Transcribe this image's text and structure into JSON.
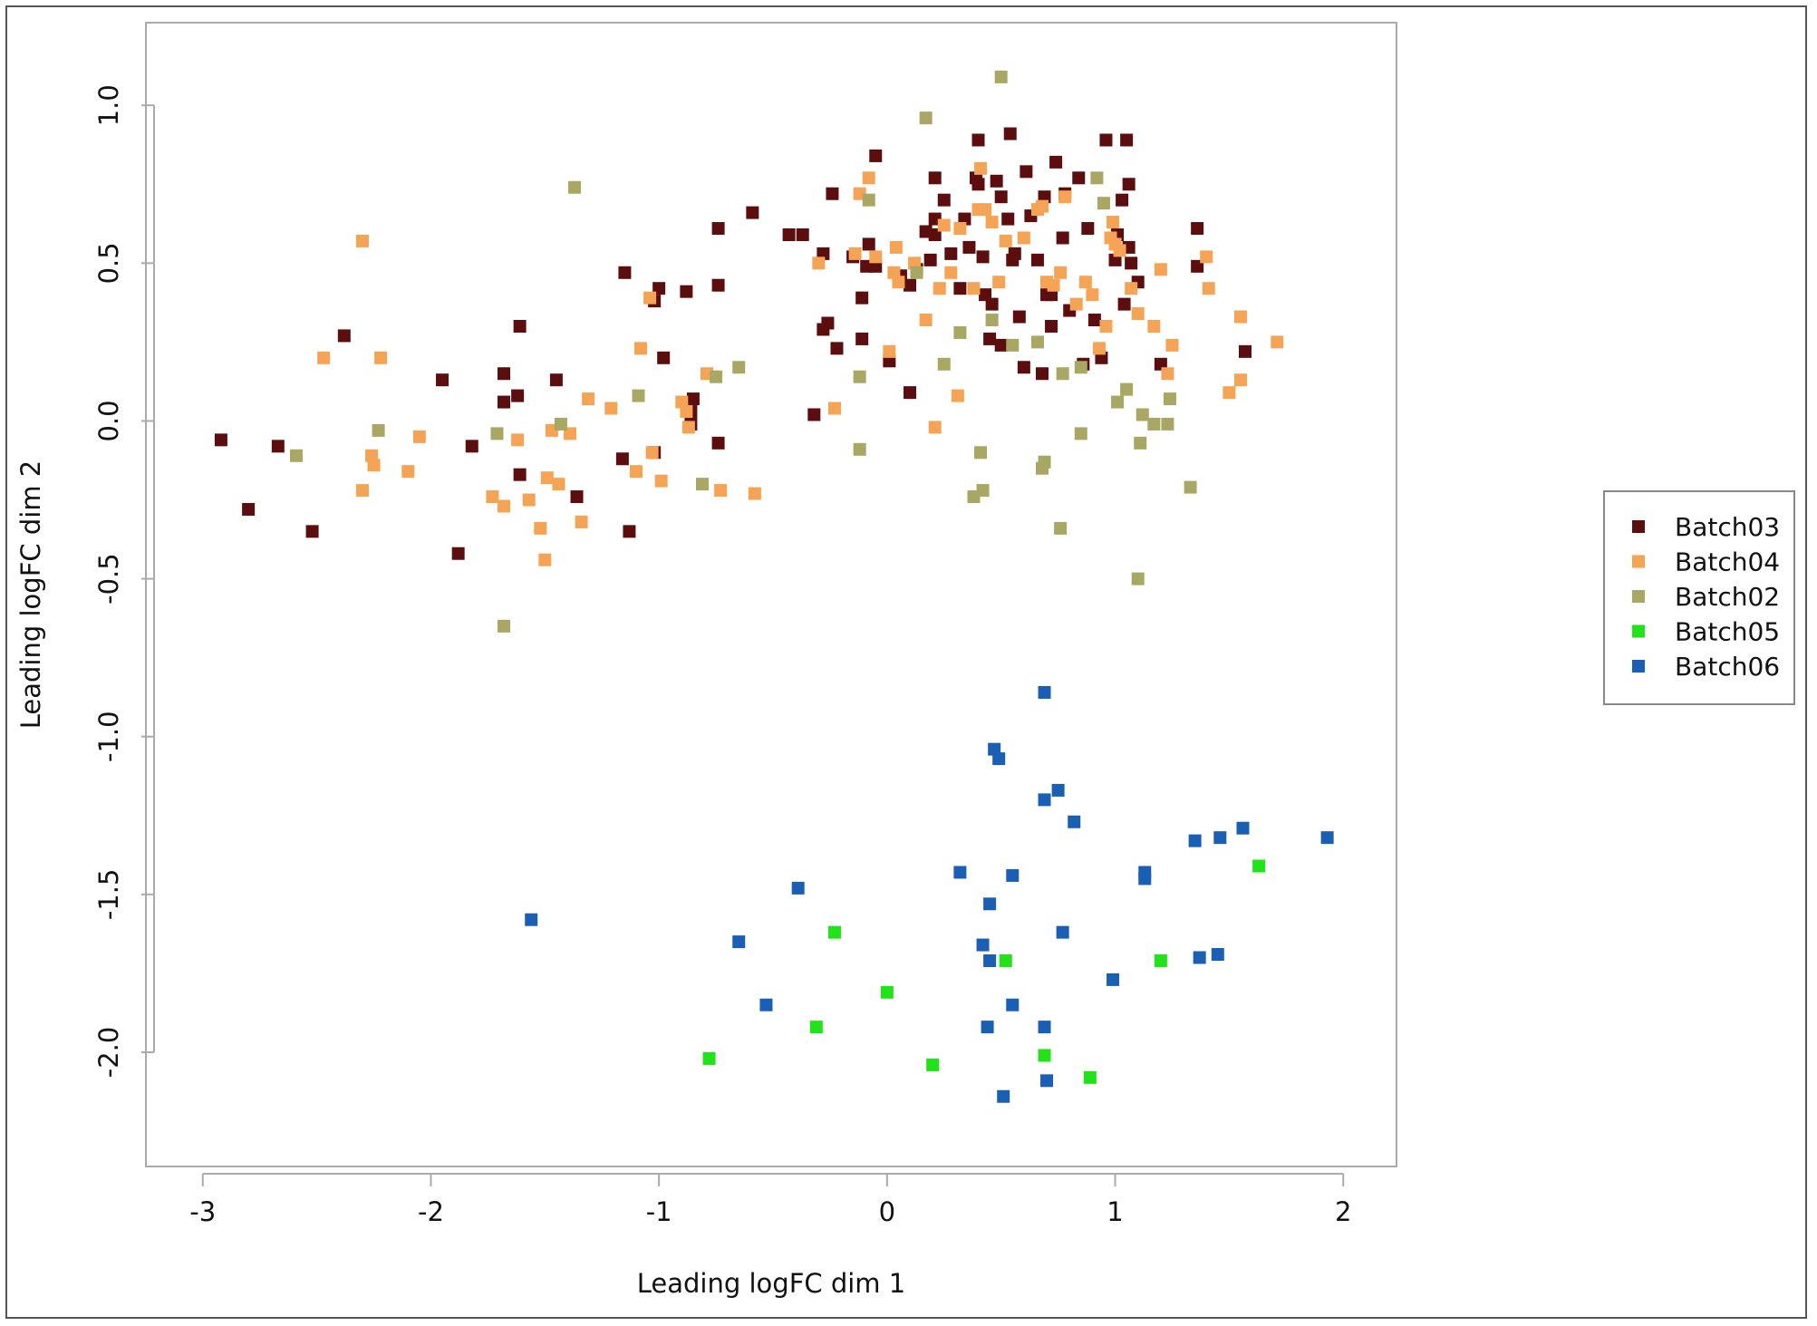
{
  "chart_data": {
    "type": "scatter",
    "xlabel": "Leading logFC dim 1",
    "ylabel": "Leading logFC dim 2",
    "xlim": [
      -3.1,
      2.1
    ],
    "ylim": [
      -2.27,
      1.17
    ],
    "x_ticks": [
      -3,
      -2,
      -1,
      0,
      1,
      2
    ],
    "x_tick_labels": [
      "-3",
      "-2",
      "-1",
      "0",
      "1",
      "2"
    ],
    "y_ticks": [
      1.0,
      0.5,
      0.0,
      -0.5,
      -1.0,
      -1.5,
      -2.0
    ],
    "y_tick_labels": [
      "1.0",
      "0.5",
      "0.0",
      "-0.5",
      "-1.0",
      "-1.5",
      "-2.0"
    ],
    "grid": false,
    "legend_position": "right",
    "series": [
      {
        "name": "Batch03",
        "color": "#5c0e0e",
        "points": [
          [
            -2.92,
            -0.06
          ],
          [
            -2.8,
            -0.28
          ],
          [
            -2.67,
            -0.08
          ],
          [
            -2.52,
            -0.35
          ],
          [
            -2.38,
            0.27
          ],
          [
            -1.95,
            0.13
          ],
          [
            -1.88,
            -0.42
          ],
          [
            -1.82,
            -0.08
          ],
          [
            -1.68,
            0.06
          ],
          [
            -1.68,
            0.15
          ],
          [
            -1.62,
            0.08
          ],
          [
            -1.61,
            -0.17
          ],
          [
            -1.61,
            0.3
          ],
          [
            -1.45,
            0.13
          ],
          [
            -1.36,
            -0.24
          ],
          [
            -1.15,
            0.47
          ],
          [
            -1.13,
            -0.35
          ],
          [
            -1.16,
            -0.12
          ],
          [
            -1.0,
            0.42
          ],
          [
            -1.02,
            0.38
          ],
          [
            -1.02,
            -0.1
          ],
          [
            -0.98,
            0.2
          ],
          [
            -0.88,
            0.41
          ],
          [
            -0.85,
            0.07
          ],
          [
            -0.86,
            0.03
          ],
          [
            -0.86,
            -0.01
          ],
          [
            -0.74,
            0.43
          ],
          [
            -0.74,
            0.61
          ],
          [
            -0.74,
            -0.07
          ],
          [
            -0.59,
            0.66
          ],
          [
            -0.43,
            0.59
          ],
          [
            -0.37,
            0.59
          ],
          [
            -0.32,
            0.02
          ],
          [
            -0.28,
            0.29
          ],
          [
            -0.28,
            0.53
          ],
          [
            -0.26,
            0.31
          ],
          [
            -0.24,
            0.72
          ],
          [
            -0.22,
            0.23
          ],
          [
            -0.15,
            0.52
          ],
          [
            -0.11,
            0.26
          ],
          [
            -0.11,
            0.39
          ],
          [
            -0.09,
            0.49
          ],
          [
            -0.08,
            0.56
          ],
          [
            -0.05,
            0.84
          ],
          [
            -0.05,
            0.49
          ],
          [
            0.01,
            0.19
          ],
          [
            0.06,
            0.46
          ],
          [
            0.1,
            0.43
          ],
          [
            0.1,
            0.09
          ],
          [
            0.13,
            0.48
          ],
          [
            0.17,
            0.6
          ],
          [
            0.19,
            0.51
          ],
          [
            0.21,
            0.77
          ],
          [
            0.21,
            0.59
          ],
          [
            0.21,
            0.64
          ],
          [
            0.25,
            0.7
          ],
          [
            0.28,
            0.53
          ],
          [
            0.32,
            0.42
          ],
          [
            0.34,
            0.64
          ],
          [
            0.36,
            0.55
          ],
          [
            0.39,
            0.77
          ],
          [
            0.4,
            0.89
          ],
          [
            0.4,
            0.75
          ],
          [
            0.42,
            0.52
          ],
          [
            0.43,
            0.4
          ],
          [
            0.45,
            0.26
          ],
          [
            0.46,
            0.37
          ],
          [
            0.48,
            0.76
          ],
          [
            0.5,
            0.24
          ],
          [
            0.5,
            0.71
          ],
          [
            0.53,
            0.64
          ],
          [
            0.54,
            0.91
          ],
          [
            0.55,
            0.51
          ],
          [
            0.56,
            0.53
          ],
          [
            0.58,
            0.33
          ],
          [
            0.6,
            0.17
          ],
          [
            0.61,
            0.79
          ],
          [
            0.63,
            0.65
          ],
          [
            0.66,
            0.51
          ],
          [
            0.68,
            0.15
          ],
          [
            0.69,
            0.71
          ],
          [
            0.7,
            0.4
          ],
          [
            0.72,
            0.3
          ],
          [
            0.72,
            0.4
          ],
          [
            0.74,
            0.82
          ],
          [
            0.77,
            0.58
          ],
          [
            0.78,
            0.72
          ],
          [
            0.8,
            0.35
          ],
          [
            0.84,
            0.77
          ],
          [
            0.86,
            0.18
          ],
          [
            0.88,
            0.61
          ],
          [
            0.91,
            0.32
          ],
          [
            0.94,
            0.2
          ],
          [
            0.96,
            0.89
          ],
          [
            1.0,
            0.51
          ],
          [
            1.01,
            0.59
          ],
          [
            1.03,
            0.7
          ],
          [
            1.04,
            0.37
          ],
          [
            1.05,
            0.89
          ],
          [
            1.06,
            0.75
          ],
          [
            1.06,
            0.55
          ],
          [
            1.07,
            0.5
          ],
          [
            1.1,
            0.44
          ],
          [
            1.2,
            0.18
          ],
          [
            1.36,
            0.61
          ],
          [
            1.36,
            0.49
          ],
          [
            1.57,
            0.22
          ]
        ]
      },
      {
        "name": "Batch04",
        "color": "#f5a455",
        "points": [
          [
            -2.47,
            0.2
          ],
          [
            -2.3,
            0.57
          ],
          [
            -2.3,
            -0.22
          ],
          [
            -2.26,
            -0.11
          ],
          [
            -2.25,
            -0.14
          ],
          [
            -2.22,
            0.2
          ],
          [
            -2.1,
            -0.16
          ],
          [
            -2.05,
            -0.05
          ],
          [
            -1.73,
            -0.24
          ],
          [
            -1.68,
            -0.27
          ],
          [
            -1.62,
            -0.06
          ],
          [
            -1.57,
            -0.25
          ],
          [
            -1.52,
            -0.34
          ],
          [
            -1.5,
            -0.44
          ],
          [
            -1.49,
            -0.18
          ],
          [
            -1.47,
            -0.03
          ],
          [
            -1.44,
            -0.2
          ],
          [
            -1.39,
            -0.04
          ],
          [
            -1.34,
            -0.32
          ],
          [
            -1.31,
            0.07
          ],
          [
            -1.21,
            0.04
          ],
          [
            -1.08,
            0.23
          ],
          [
            -1.04,
            0.39
          ],
          [
            -1.03,
            -0.1
          ],
          [
            -1.1,
            -0.16
          ],
          [
            -0.99,
            -0.19
          ],
          [
            -0.9,
            0.06
          ],
          [
            -0.88,
            0.03
          ],
          [
            -0.87,
            -0.02
          ],
          [
            -0.79,
            0.15
          ],
          [
            -0.73,
            -0.22
          ],
          [
            -0.58,
            -0.23
          ],
          [
            -0.3,
            0.5
          ],
          [
            -0.23,
            0.04
          ],
          [
            -0.14,
            0.53
          ],
          [
            -0.12,
            0.72
          ],
          [
            -0.08,
            0.77
          ],
          [
            -0.05,
            0.52
          ],
          [
            0.01,
            0.22
          ],
          [
            0.03,
            0.47
          ],
          [
            0.04,
            0.55
          ],
          [
            0.05,
            0.44
          ],
          [
            0.12,
            0.5
          ],
          [
            0.17,
            0.32
          ],
          [
            0.21,
            -0.02
          ],
          [
            0.23,
            0.42
          ],
          [
            0.25,
            0.62
          ],
          [
            0.28,
            0.47
          ],
          [
            0.31,
            0.08
          ],
          [
            0.32,
            0.61
          ],
          [
            0.38,
            0.42
          ],
          [
            0.4,
            0.67
          ],
          [
            0.41,
            0.8
          ],
          [
            0.43,
            0.67
          ],
          [
            0.46,
            0.63
          ],
          [
            0.49,
            0.44
          ],
          [
            0.52,
            0.57
          ],
          [
            0.6,
            0.58
          ],
          [
            0.66,
            0.67
          ],
          [
            0.68,
            0.68
          ],
          [
            0.7,
            0.44
          ],
          [
            0.73,
            0.43
          ],
          [
            0.76,
            0.47
          ],
          [
            0.78,
            0.71
          ],
          [
            0.83,
            0.37
          ],
          [
            0.87,
            0.44
          ],
          [
            0.9,
            0.4
          ],
          [
            0.93,
            0.23
          ],
          [
            0.96,
            0.3
          ],
          [
            0.98,
            0.58
          ],
          [
            0.99,
            0.63
          ],
          [
            1.0,
            0.56
          ],
          [
            1.02,
            0.54
          ],
          [
            1.07,
            0.42
          ],
          [
            1.1,
            0.34
          ],
          [
            1.17,
            0.3
          ],
          [
            1.2,
            0.48
          ],
          [
            1.23,
            0.15
          ],
          [
            1.25,
            0.24
          ],
          [
            1.4,
            0.52
          ],
          [
            1.41,
            0.42
          ],
          [
            1.5,
            0.09
          ],
          [
            1.55,
            0.13
          ],
          [
            1.55,
            0.33
          ],
          [
            1.71,
            0.25
          ]
        ]
      },
      {
        "name": "Batch02",
        "color": "#a8a864",
        "points": [
          [
            -2.59,
            -0.11
          ],
          [
            -2.23,
            -0.03
          ],
          [
            -1.71,
            -0.04
          ],
          [
            -1.68,
            -0.65
          ],
          [
            -1.43,
            -0.01
          ],
          [
            -1.37,
            0.74
          ],
          [
            -1.09,
            0.08
          ],
          [
            -0.81,
            -0.2
          ],
          [
            -0.75,
            0.14
          ],
          [
            -0.65,
            0.17
          ],
          [
            -0.12,
            -0.09
          ],
          [
            -0.12,
            0.14
          ],
          [
            -0.08,
            0.7
          ],
          [
            0.13,
            0.47
          ],
          [
            0.17,
            0.96
          ],
          [
            0.25,
            0.18
          ],
          [
            0.32,
            0.28
          ],
          [
            0.38,
            -0.24
          ],
          [
            0.41,
            -0.1
          ],
          [
            0.42,
            -0.22
          ],
          [
            0.46,
            0.32
          ],
          [
            0.5,
            1.09
          ],
          [
            0.55,
            0.24
          ],
          [
            0.66,
            0.25
          ],
          [
            0.68,
            -0.15
          ],
          [
            0.69,
            -0.13
          ],
          [
            0.76,
            -0.34
          ],
          [
            0.77,
            0.15
          ],
          [
            0.85,
            0.17
          ],
          [
            0.85,
            -0.04
          ],
          [
            0.92,
            0.77
          ],
          [
            0.95,
            0.69
          ],
          [
            1.01,
            0.06
          ],
          [
            1.05,
            0.1
          ],
          [
            1.1,
            -0.5
          ],
          [
            1.11,
            -0.07
          ],
          [
            1.12,
            0.02
          ],
          [
            1.17,
            -0.01
          ],
          [
            1.23,
            -0.01
          ],
          [
            1.24,
            0.07
          ],
          [
            1.33,
            -0.21
          ]
        ]
      },
      {
        "name": "Batch05",
        "color": "#22e21a",
        "points": [
          [
            -0.78,
            -2.02
          ],
          [
            -0.31,
            -1.92
          ],
          [
            -0.23,
            -1.62
          ],
          [
            0.0,
            -1.81
          ],
          [
            0.2,
            -2.04
          ],
          [
            0.52,
            -1.71
          ],
          [
            0.69,
            -2.01
          ],
          [
            0.89,
            -2.08
          ],
          [
            1.2,
            -1.71
          ],
          [
            1.63,
            -1.41
          ]
        ]
      },
      {
        "name": "Batch06",
        "color": "#1a5fb4",
        "points": [
          [
            -1.56,
            -1.58
          ],
          [
            -0.65,
            -1.65
          ],
          [
            -0.53,
            -1.85
          ],
          [
            -0.39,
            -1.48
          ],
          [
            0.32,
            -1.43
          ],
          [
            0.42,
            -1.66
          ],
          [
            0.44,
            -1.92
          ],
          [
            0.45,
            -1.71
          ],
          [
            0.45,
            -1.53
          ],
          [
            0.47,
            -1.04
          ],
          [
            0.49,
            -1.07
          ],
          [
            0.51,
            -2.14
          ],
          [
            0.55,
            -1.44
          ],
          [
            0.55,
            -1.85
          ],
          [
            0.69,
            -0.86
          ],
          [
            0.69,
            -1.2
          ],
          [
            0.7,
            -2.09
          ],
          [
            0.69,
            -1.92
          ],
          [
            0.75,
            -1.17
          ],
          [
            0.77,
            -1.62
          ],
          [
            0.82,
            -1.27
          ],
          [
            0.99,
            -1.77
          ],
          [
            1.13,
            -1.45
          ],
          [
            1.13,
            -1.43
          ],
          [
            1.35,
            -1.33
          ],
          [
            1.37,
            -1.7
          ],
          [
            1.45,
            -1.69
          ],
          [
            1.46,
            -1.32
          ],
          [
            1.56,
            -1.29
          ],
          [
            1.93,
            -1.32
          ]
        ]
      }
    ]
  }
}
